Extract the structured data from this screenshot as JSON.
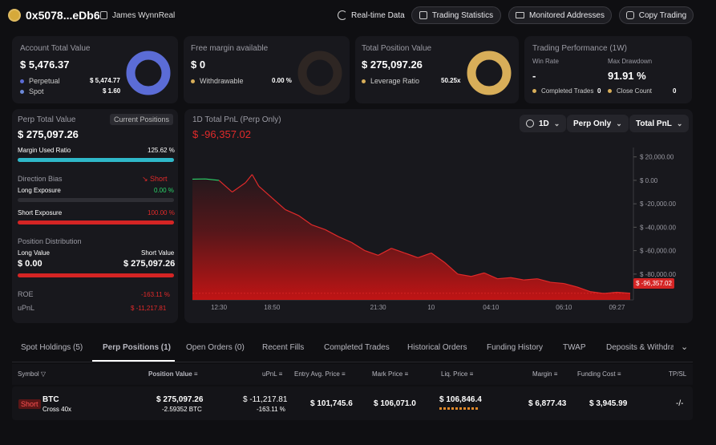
{
  "header": {
    "address": "0x5078...eDb6",
    "user_name": "James WynnReal",
    "realtime_label": "Real-time Data",
    "trading_stats_label": "Trading Statistics",
    "monitored_label": "Monitored Addresses",
    "copy_label": "Copy Trading"
  },
  "account": {
    "title": "Account Total Value",
    "value": "$ 5,476.37",
    "perp_label": "Perpetual",
    "perp_value": "$ 5,474.77",
    "spot_label": "Spot",
    "spot_value": "$ 1.60",
    "perp_share": 0.9997
  },
  "margin": {
    "title": "Free margin available",
    "value": "$ 0",
    "withdrawable_label": "Withdrawable",
    "withdrawable_pct": "0.00 %",
    "ratio": 0
  },
  "position": {
    "title": "Total Position Value",
    "value": "$ 275,097.26",
    "leverage_label": "Leverage Ratio",
    "leverage_value": "50.25x"
  },
  "performance": {
    "title": "Trading Performance (1W)",
    "win_rate_label": "Win Rate",
    "win_rate_value": "-",
    "max_drawdown_label": "Max Drawdown",
    "max_drawdown_value": "91.91 %",
    "completed_label": "Completed Trades",
    "completed_value": "0",
    "close_label": "Close Count",
    "close_value": "0"
  },
  "perp": {
    "title": "Perp Total Value",
    "current_positions_label": "Current Positions",
    "value": "$ 275,097.26",
    "margin_used_label": "Margin Used Ratio",
    "margin_used_value": "125.62 %",
    "margin_used_ratio": 1,
    "direction_label": "Direction Bias",
    "direction_value": "Short",
    "long_exposure_label": "Long Exposure",
    "long_exposure_value": "0.00 %",
    "long_ratio": 0,
    "short_exposure_label": "Short Exposure",
    "short_exposure_value": "100.00 %",
    "short_ratio": 1,
    "distribution_label": "Position Distribution",
    "long_value_label": "Long Value",
    "short_value_label": "Short Value",
    "long_value": "$ 0.00",
    "short_value": "$ 275,097.26",
    "roe_label": "ROE",
    "roe_value": "-163.11 %",
    "upnl_label": "uPnL",
    "upnl_value": "$ -11,217.81"
  },
  "chart_panel": {
    "title": "1D Total PnL (Perp Only)",
    "current_value": "$ -96,357.02",
    "period": "1D",
    "scope": "Perp Only",
    "metric": "Total PnL",
    "last_label": "$ -96,357.02"
  },
  "chart_data": {
    "type": "line",
    "xlabel": "",
    "ylabel": "",
    "x_ticks": [
      "12:30",
      "18:50",
      "21:30",
      "10",
      "04:10",
      "06:10",
      "09:27"
    ],
    "y_ticks": [
      "$ 20,000.00",
      "$ 0.00",
      "$ -20,000.00",
      "$ -40,000.00",
      "$ -60,000.00",
      "$ -80,000.00"
    ],
    "y_tick_values": [
      20000,
      0,
      -20000,
      -40000,
      -60000,
      -80000
    ],
    "ylim": [
      -102000,
      28000
    ],
    "x_index_range": [
      0,
      66
    ],
    "x_tick_positions": [
      4,
      12,
      28,
      36,
      45,
      56,
      64
    ],
    "values": [
      [
        0,
        1000
      ],
      [
        2,
        1200
      ],
      [
        4,
        0
      ],
      [
        6,
        -10000
      ],
      [
        8,
        -2000
      ],
      [
        9,
        5000
      ],
      [
        10,
        -5000
      ],
      [
        12,
        -15000
      ],
      [
        14,
        -25000
      ],
      [
        16,
        -30000
      ],
      [
        18,
        -38000
      ],
      [
        20,
        -42000
      ],
      [
        22,
        -48000
      ],
      [
        24,
        -53000
      ],
      [
        26,
        -60000
      ],
      [
        28,
        -64000
      ],
      [
        30,
        -58000
      ],
      [
        32,
        -62000
      ],
      [
        34,
        -66000
      ],
      [
        36,
        -62000
      ],
      [
        38,
        -70000
      ],
      [
        40,
        -80000
      ],
      [
        42,
        -82000
      ],
      [
        44,
        -79000
      ],
      [
        46,
        -84000
      ],
      [
        48,
        -83000
      ],
      [
        50,
        -85000
      ],
      [
        52,
        -84000
      ],
      [
        54,
        -87000
      ],
      [
        56,
        -88000
      ],
      [
        58,
        -91000
      ],
      [
        60,
        -95000
      ],
      [
        62,
        -96500
      ],
      [
        64,
        -95500
      ],
      [
        66,
        -96357
      ]
    ],
    "line_color_up": "#2bd46a",
    "line_color_down": "#e02a2a",
    "fill_color": "#c81414",
    "reference": -96357.02
  },
  "tabs": [
    "Spot Holdings (5)",
    "Perp Positions (1)",
    "Open Orders (0)",
    "Recent Fills",
    "Completed Trades",
    "Historical Orders",
    "Funding History",
    "TWAP",
    "Deposits & Withdraw"
  ],
  "table": {
    "headers": {
      "symbol": "Symbol",
      "position_value": "Position Value",
      "upnl": "uPnL",
      "entry": "Entry Avg. Price",
      "mark": "Mark Price",
      "liq": "Liq. Price",
      "margin": "Margin",
      "funding": "Funding Cost",
      "tpsl": "TP/SL"
    },
    "row": {
      "side": "Short",
      "symbol": "BTC",
      "mode": "Cross 40x",
      "position_value": "$ 275,097.26",
      "size": "-2.59352 BTC",
      "upnl": "$ -11,217.81",
      "roe": "-163.11 %",
      "entry": "$ 101,745.6",
      "mark": "$ 106,071.0",
      "liq": "$ 106,846.4",
      "margin": "$ 6,877.43",
      "funding": "$ 3,945.99",
      "tpsl": "-/-"
    }
  },
  "colors": {
    "accent_blue": "#5b6cd6",
    "gold": "#d8ae59",
    "green": "#2bd46a",
    "red": "#e02a2a",
    "teal": "#2fb8c9"
  }
}
